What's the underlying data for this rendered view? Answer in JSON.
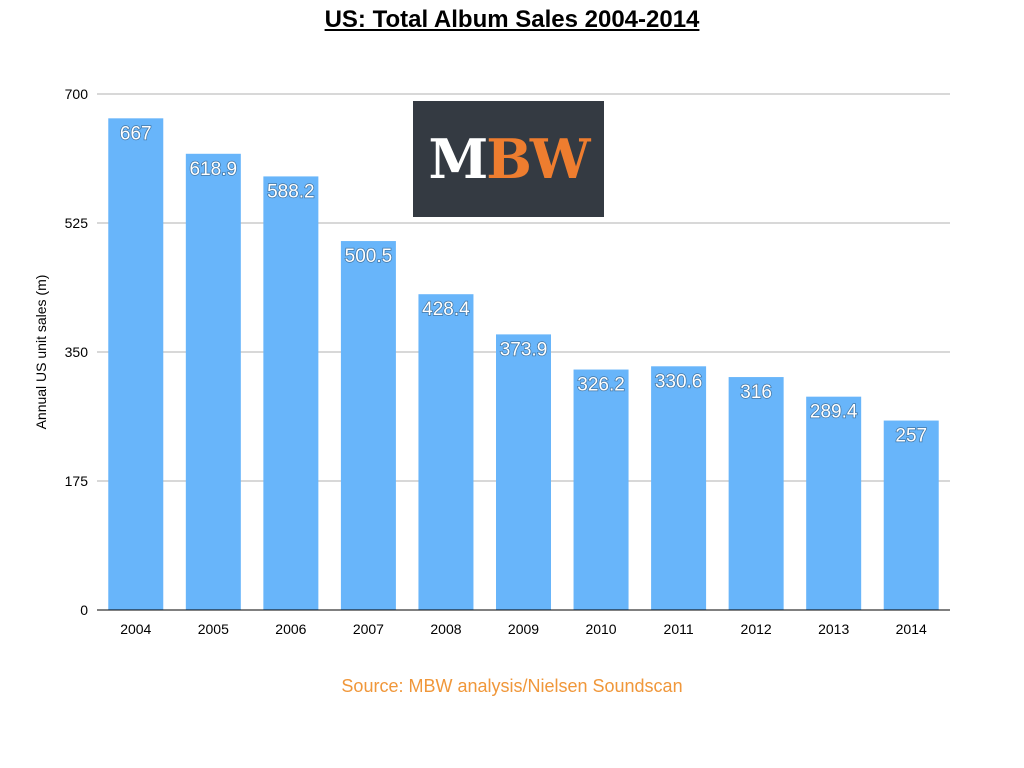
{
  "chart_data": {
    "type": "bar",
    "title": "US: Total Album Sales 2004-2014",
    "xlabel": "",
    "ylabel": "Annual US unit sales (m)",
    "categories": [
      "2004",
      "2005",
      "2006",
      "2007",
      "2008",
      "2009",
      "2010",
      "2011",
      "2012",
      "2013",
      "2014"
    ],
    "values": [
      667,
      618.9,
      588.2,
      500.5,
      428.4,
      373.9,
      326.2,
      330.6,
      316,
      289.4,
      257
    ],
    "data_labels": [
      "667",
      "618.9",
      "588.2",
      "500.5",
      "428.4",
      "373.9",
      "326.2",
      "330.6",
      "316",
      "289.4",
      "257"
    ],
    "ylim": [
      0,
      700
    ],
    "yticks": [
      0,
      175,
      350,
      525,
      700
    ],
    "grid": true,
    "bar_color": "#68B5FA"
  },
  "logo": {
    "text_white": "M",
    "text_orange": "BW",
    "bg": "#343A42",
    "accent": "#EE7D2F"
  },
  "source": "Source: MBW analysis/Nielsen Soundscan"
}
